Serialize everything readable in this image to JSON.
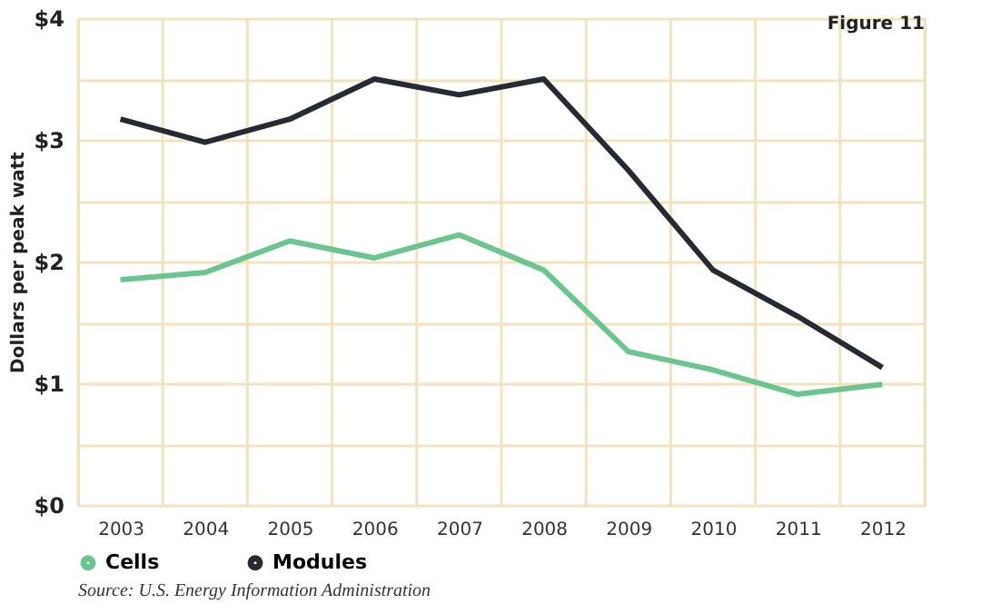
{
  "chart_data": {
    "type": "line",
    "title": "Figure 11",
    "ylabel": "Dollars per peak watt",
    "categories": [
      "2003",
      "2004",
      "2005",
      "2006",
      "2007",
      "2008",
      "2009",
      "2010",
      "2011",
      "2012"
    ],
    "series": [
      {
        "name": "Cells",
        "color": "#6cc58f",
        "values": [
          1.85,
          1.91,
          2.17,
          2.03,
          2.22,
          1.93,
          1.26,
          1.11,
          0.91,
          0.99
        ]
      },
      {
        "name": "Modules",
        "color": "#262a33",
        "values": [
          3.17,
          2.98,
          3.17,
          3.5,
          3.37,
          3.5,
          2.75,
          1.93,
          1.55,
          1.13
        ]
      }
    ],
    "ylim": [
      0,
      4
    ],
    "yticks": [
      {
        "value": 0,
        "label": "$0"
      },
      {
        "value": 0.5,
        "label": null
      },
      {
        "value": 1,
        "label": "$1"
      },
      {
        "value": 1.5,
        "label": null
      },
      {
        "value": 2,
        "label": "$2"
      },
      {
        "value": 2.5,
        "label": null
      },
      {
        "value": 3,
        "label": "$3"
      },
      {
        "value": 3.5,
        "label": null
      },
      {
        "value": 4,
        "label": "$4"
      }
    ],
    "grid": true,
    "legend": "bottom left",
    "marker": "none",
    "line_style": "solid",
    "annotations": [
      "Source:  U.S. Energy Information Administration"
    ]
  }
}
